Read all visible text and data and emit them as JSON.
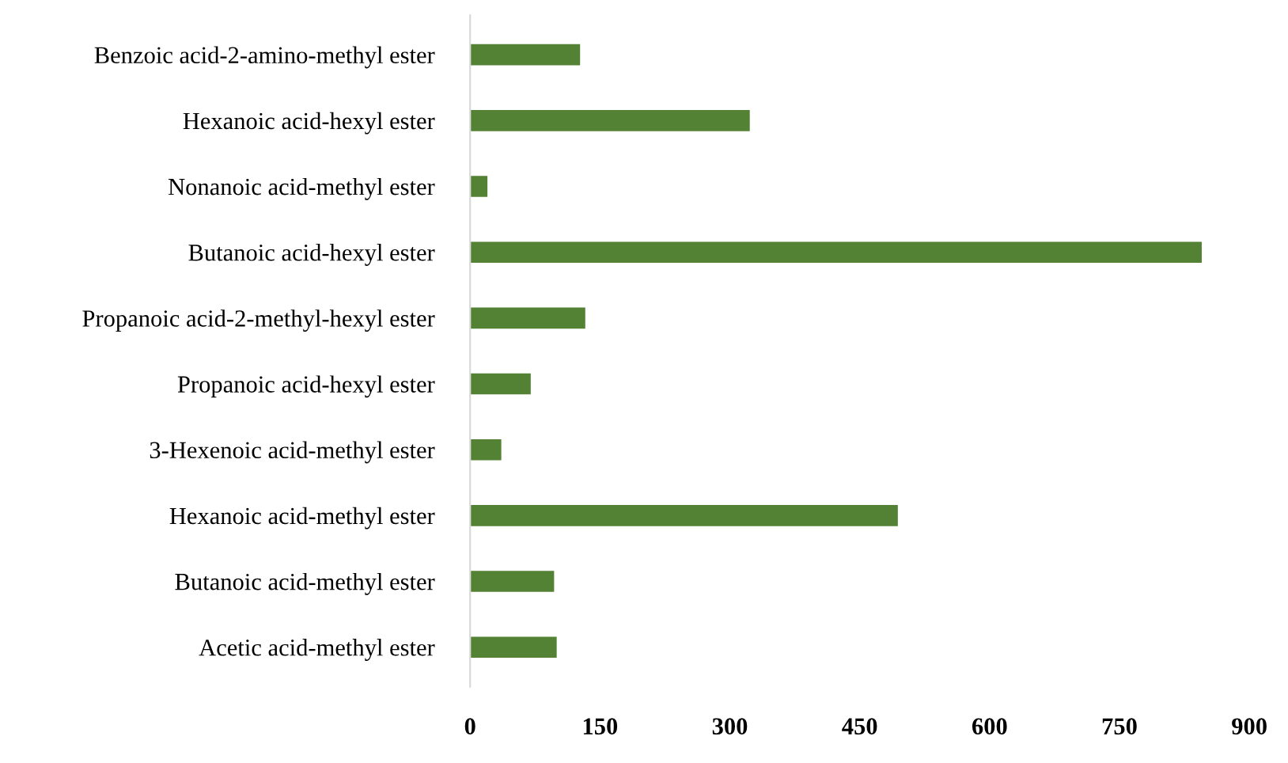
{
  "chart_data": {
    "type": "bar",
    "orientation": "horizontal",
    "categories": [
      "Benzoic acid-2-amino-methyl ester",
      "Hexanoic acid-hexyl ester",
      "Nonanoic acid-methyl ester",
      "Butanoic acid-hexyl ester",
      "Propanoic acid-2-methyl-hexyl ester",
      "Propanoic acid-hexyl ester",
      "3-Hexenoic acid-methyl ester",
      "Hexanoic acid-methyl ester",
      "Butanoic acid-methyl ester",
      "Acetic acid-methyl ester"
    ],
    "values": [
      127,
      323,
      20,
      845,
      133,
      70,
      36,
      494,
      97,
      100
    ],
    "color": "#548235",
    "xlim": [
      0,
      900
    ],
    "xticks": [
      0,
      150,
      300,
      450,
      600,
      750,
      900
    ],
    "grid": false
  }
}
